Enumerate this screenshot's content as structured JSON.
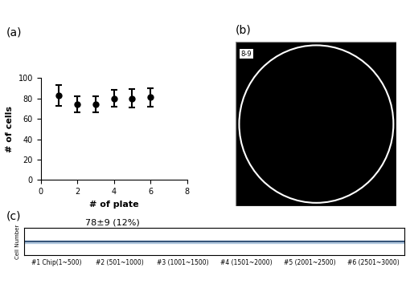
{
  "chart_data": [
    {
      "type": "scatter",
      "panel_label": "(a)",
      "x_label": "# of plate",
      "y_label": "# of cells",
      "x": [
        1,
        2,
        3,
        4,
        5,
        6
      ],
      "values": [
        83,
        74,
        74,
        80,
        80,
        81
      ],
      "error": [
        10,
        8,
        8,
        8,
        9,
        9
      ],
      "color": "#000000",
      "marker": "circle",
      "xlim": [
        0,
        8
      ],
      "xticks": [
        0,
        2,
        4,
        6,
        8
      ],
      "ylim": [
        0,
        100
      ],
      "yticks": [
        0,
        20,
        40,
        60,
        80,
        100
      ],
      "grid": false
    },
    {
      "type": "image",
      "panel_label": "(b)",
      "label": "8-9"
    },
    {
      "type": "band",
      "panel_label": "(c)",
      "y_label": "Cell Number",
      "annotation": "78±9 (12%)",
      "mean": 78,
      "sd": 9,
      "color": "#4a7fb5",
      "xlim": [
        0,
        3000
      ],
      "xticks": [
        {
          "value": 250,
          "label": "#1 Chip(1~500)"
        },
        {
          "value": 750,
          "label": "#2 (501~1000)"
        },
        {
          "value": 1250,
          "label": "#3 (1001~1500)"
        },
        {
          "value": 1750,
          "label": "#4 (1501~2000)"
        },
        {
          "value": 2250,
          "label": "#5 (2001~2500)"
        },
        {
          "value": 2750,
          "label": "#6 (2501~3000)"
        }
      ],
      "ylim": [
        0,
        160
      ],
      "tick_labels": "x",
      "grid": false
    }
  ]
}
